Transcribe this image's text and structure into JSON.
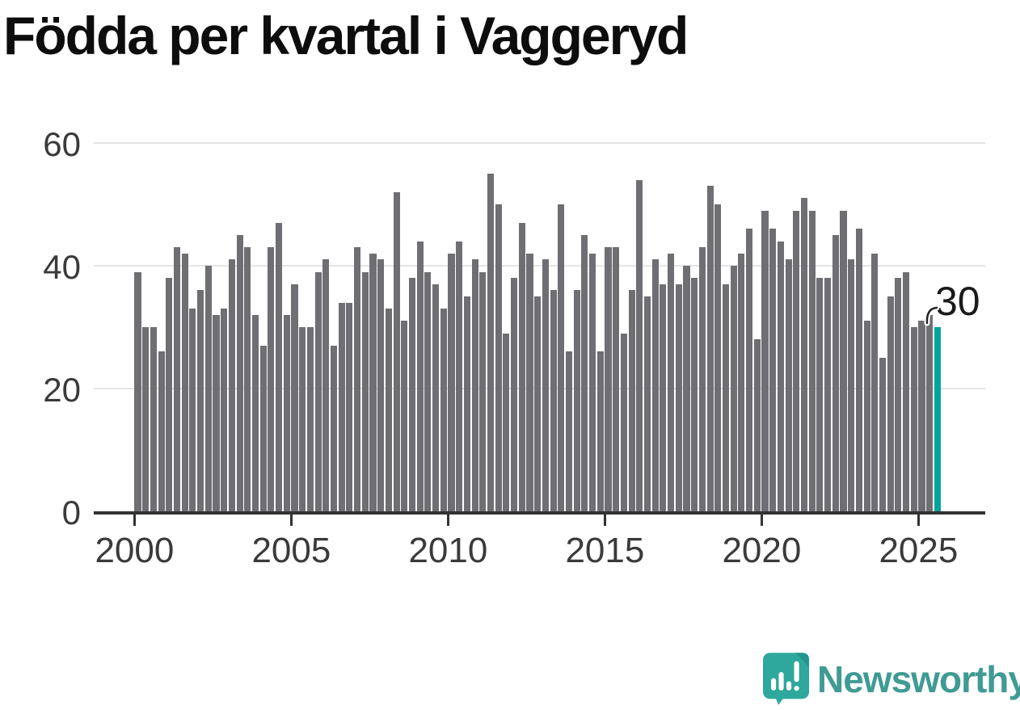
{
  "title": "Födda per kvartal i Vaggeryd",
  "annotation": {
    "last_value_label": "30"
  },
  "chart_data": {
    "type": "bar",
    "title": "Födda per kvartal i Vaggeryd",
    "x_unit": "quarter",
    "start_period": "2000 Q1",
    "end_period": "2025 Q3",
    "values": [
      39,
      30,
      30,
      26,
      38,
      43,
      42,
      33,
      36,
      40,
      32,
      33,
      41,
      45,
      43,
      32,
      27,
      43,
      47,
      32,
      37,
      30,
      30,
      39,
      41,
      27,
      34,
      34,
      43,
      39,
      42,
      41,
      33,
      52,
      31,
      38,
      44,
      39,
      37,
      33,
      42,
      44,
      35,
      41,
      39,
      55,
      50,
      29,
      38,
      47,
      42,
      35,
      41,
      36,
      50,
      26,
      36,
      45,
      42,
      26,
      43,
      43,
      29,
      36,
      54,
      35,
      41,
      37,
      42,
      37,
      40,
      38,
      43,
      53,
      50,
      37,
      40,
      42,
      46,
      28,
      49,
      46,
      44,
      41,
      49,
      51,
      49,
      38,
      38,
      45,
      49,
      41,
      46,
      31,
      42,
      25,
      35,
      38,
      39,
      30,
      31,
      32,
      30
    ],
    "highlight": {
      "index": 102,
      "period": "2025 Q3",
      "value": 30,
      "label": "30",
      "color": "#00a49c"
    },
    "bar_color": "#6e6e73",
    "x_ticks": [
      "2000",
      "2005",
      "2010",
      "2015",
      "2020",
      "2025"
    ],
    "y_ticks": [
      0,
      20,
      40,
      60
    ],
    "ylim": [
      0,
      60
    ],
    "grid": true,
    "legend_position": "none"
  },
  "branding": {
    "name": "Newsworthy",
    "color": "#3f9b94",
    "icon": "newsworthy-logo-icon"
  }
}
